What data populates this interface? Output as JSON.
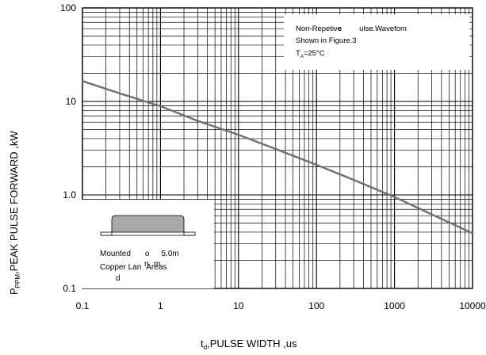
{
  "chart_data": {
    "type": "line",
    "x_scale": "log",
    "y_scale": "log",
    "xlim": [
      0.1,
      10000
    ],
    "ylim": [
      0.1,
      100
    ],
    "x_ticks": [
      "0.1",
      "1",
      "10",
      "100",
      "1000",
      "10000"
    ],
    "y_ticks": [
      "0.1",
      "1.0",
      "10",
      "100"
    ],
    "xlabel_main": "t",
    "xlabel_sub": "d",
    "xlabel_rest": ",PULSE WIDTH ,us",
    "ylabel_main": "P",
    "ylabel_sub": "PPM",
    "ylabel_rest": ",PEAK PULSE  FORWARD ,kW",
    "grid": true,
    "series": [
      {
        "x": [
          0.1,
          0.3,
          1,
          3,
          10,
          30,
          100,
          300,
          1000,
          3000,
          10000
        ],
        "y": [
          16.5,
          12.2,
          8.9,
          6.2,
          4.4,
          3.1,
          2.1,
          1.45,
          0.95,
          0.62,
          0.39
        ],
        "color": "#707070"
      }
    ],
    "annotation": {
      "line1_a": "Non-Repetiv",
      "line1_b": "e",
      "line1_c": "ulse.Wavefom",
      "line2": "Shown in Figure.3",
      "line3_main": "T",
      "line3_sub": "A",
      "line3_rest": "=25°C"
    },
    "inset": {
      "line1_a": "Mounted",
      "line1_b": "o",
      "line1_c": "5.0m",
      "line2_a": "Copper Lan",
      "line2_b": "Areas",
      "line2_c": "n",
      "line2_d": "m",
      "line3": "d"
    }
  },
  "colors": {
    "grid": "#000000",
    "curve": "#707070",
    "device_body": "#a9a9a9"
  }
}
